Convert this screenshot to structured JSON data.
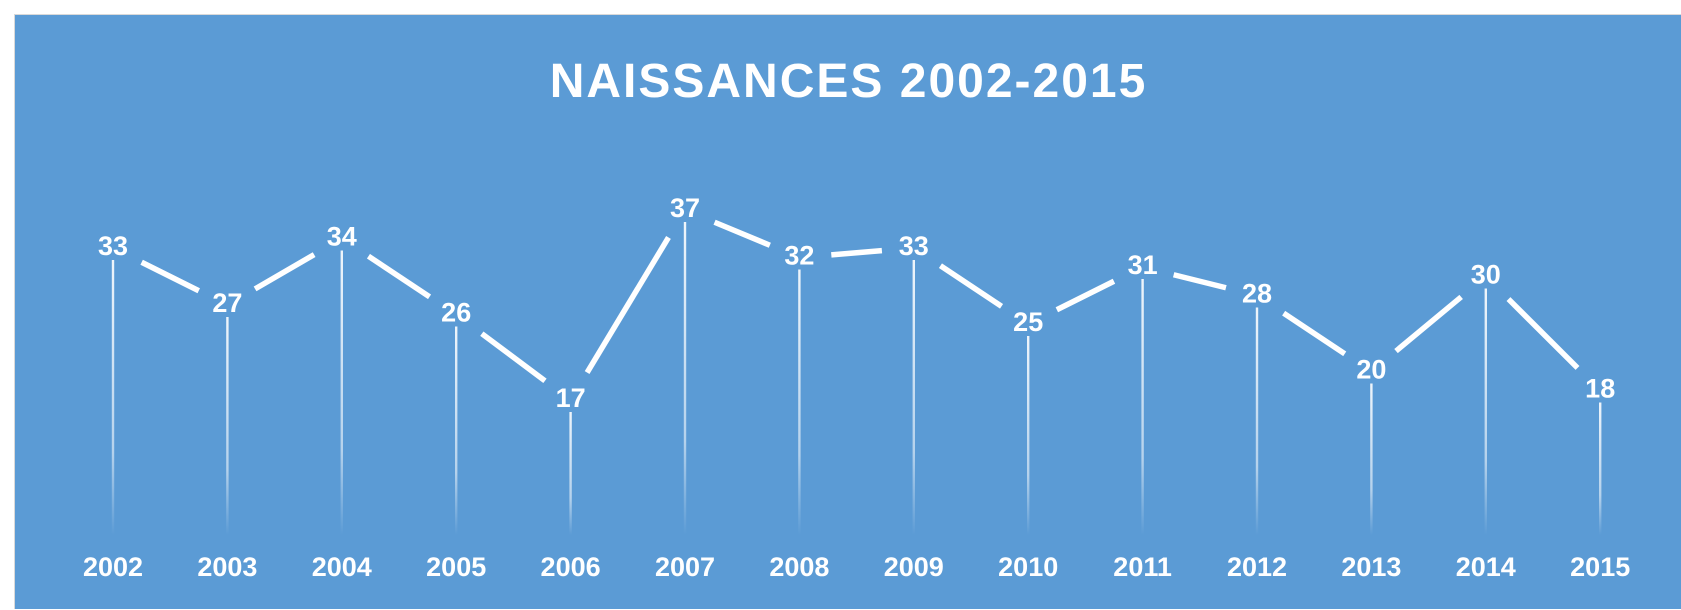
{
  "chart_data": {
    "type": "line",
    "title": "NAISSANCES 2002-2015",
    "xlabel": "",
    "ylabel": "",
    "categories": [
      "2002",
      "2003",
      "2004",
      "2005",
      "2006",
      "2007",
      "2008",
      "2009",
      "2010",
      "2011",
      "2012",
      "2013",
      "2014",
      "2015"
    ],
    "series": [
      {
        "values": [
          33,
          27,
          34,
          26,
          17,
          37,
          32,
          33,
          25,
          31,
          28,
          20,
          30,
          18
        ]
      }
    ],
    "data_labels": true,
    "drop_lines": true,
    "grid": false,
    "legend": "none",
    "colors": {
      "background": "#5b9bd5",
      "line": "#ffffff",
      "text": "#ffffff"
    }
  }
}
